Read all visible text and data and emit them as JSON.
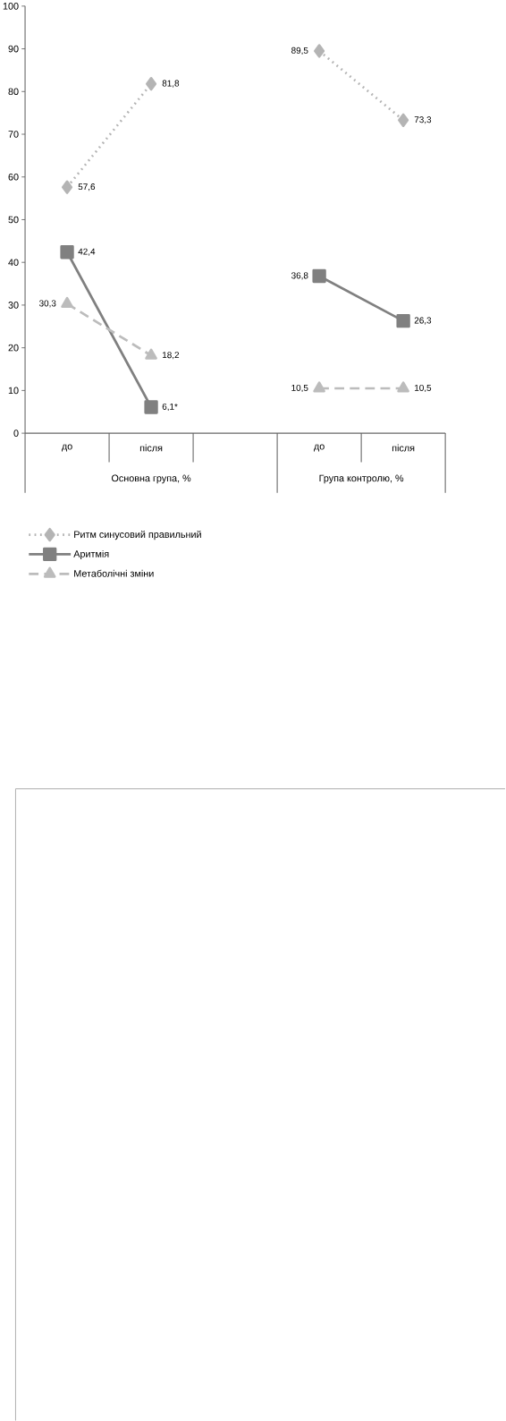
{
  "chart_data": {
    "type": "line",
    "categories": [
      "до",
      "після",
      null,
      "до",
      "після"
    ],
    "series": [
      {
        "name": "Ритм синусовий правильний",
        "color": "#b4b4b4",
        "marker": "diamond",
        "line_style": "dotted",
        "values": [
          57.6,
          81.8,
          null,
          89.5,
          73.3
        ],
        "value_labels": [
          "57,6",
          "81,8",
          null,
          "89,5",
          "73,3"
        ]
      },
      {
        "name": "Аритмія",
        "color": "#808080",
        "marker": "square",
        "line_style": "solid",
        "values": [
          42.4,
          6.1,
          null,
          36.8,
          26.3
        ],
        "value_labels": [
          "42,4",
          "6,1*",
          null,
          "36,8",
          "26,3"
        ]
      },
      {
        "name": "Метаболічні зміни",
        "color": "#bcbcbc",
        "marker": "triangle",
        "line_style": "dashed",
        "values": [
          30.3,
          18.2,
          null,
          10.5,
          10.5
        ],
        "value_labels": [
          "30,3",
          "18,2",
          null,
          "10,5",
          "10,5"
        ]
      }
    ],
    "annotations": [
      "Основна група, %",
      "Група контролю, %"
    ],
    "ylim": [
      0,
      100
    ],
    "yticks": [
      0,
      10,
      20,
      30,
      40,
      50,
      60,
      70,
      80,
      90,
      100
    ],
    "legend": "bottom",
    "grid": false
  }
}
